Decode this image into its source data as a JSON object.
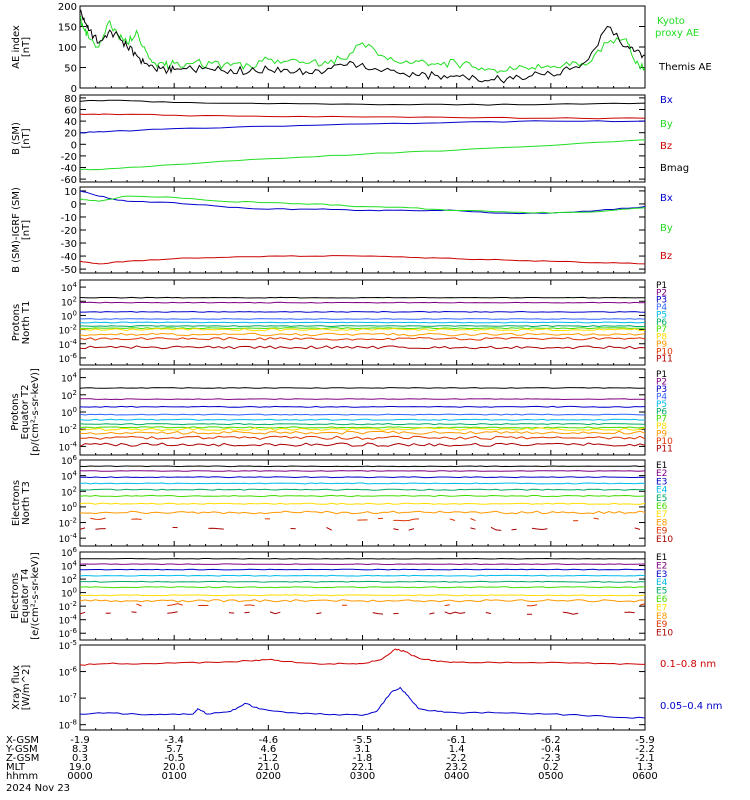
{
  "chart_data": [
    {
      "type": "line",
      "ylabel": "AE index [nT]",
      "yticks": [
        "0",
        "50",
        "100",
        "150",
        "200"
      ],
      "ylim": [
        0,
        200
      ],
      "legend": [
        {
          "label": "Kyoto proxy AE",
          "color": "#22dd22"
        },
        {
          "label": "Themis AE",
          "color": "#000000"
        }
      ],
      "series": [
        {
          "name": "Kyoto proxy AE",
          "color": "#22dd22",
          "x": [
            0,
            0.05,
            0.1,
            0.2,
            0.3,
            0.4,
            0.5,
            0.6,
            0.7,
            0.8,
            0.9,
            1.0,
            1.2,
            1.4,
            1.6,
            1.8,
            2.0,
            2.2,
            2.4,
            2.6,
            2.8,
            3.0,
            3.2,
            3.4,
            3.6,
            3.8,
            4.0,
            4.2,
            4.4,
            4.6,
            4.8,
            5.0,
            5.2,
            5.4,
            5.6,
            5.8,
            5.9,
            6.0
          ],
          "y": [
            170,
            140,
            120,
            100,
            160,
            130,
            110,
            140,
            90,
            60,
            55,
            60,
            60,
            60,
            55,
            55,
            70,
            65,
            60,
            65,
            70,
            110,
            80,
            60,
            65,
            60,
            60,
            50,
            45,
            45,
            50,
            50,
            55,
            60,
            110,
            120,
            60,
            50
          ]
        },
        {
          "name": "Themis AE",
          "color": "#000000",
          "x": [
            0,
            0.05,
            0.1,
            0.2,
            0.3,
            0.4,
            0.5,
            0.6,
            0.7,
            0.8,
            0.9,
            1.0,
            1.2,
            1.4,
            1.6,
            1.8,
            2.0,
            2.2,
            2.4,
            2.6,
            2.8,
            3.0,
            3.2,
            3.4,
            3.6,
            3.8,
            4.0,
            4.2,
            4.4,
            4.6,
            4.8,
            5.0,
            5.2,
            5.4,
            5.6,
            5.8,
            5.9,
            6.0
          ],
          "y": [
            190,
            160,
            140,
            110,
            135,
            130,
            100,
            80,
            60,
            45,
            45,
            45,
            45,
            45,
            45,
            40,
            45,
            45,
            40,
            40,
            55,
            60,
            40,
            35,
            30,
            30,
            30,
            25,
            20,
            22,
            30,
            35,
            45,
            70,
            150,
            100,
            90,
            80
          ]
        }
      ]
    },
    {
      "type": "line",
      "ylabel": "B (SM) [nT]",
      "yticks": [
        "-60",
        "-40",
        "-20",
        "0",
        "20",
        "40",
        "60",
        "80"
      ],
      "ylim": [
        -65,
        85
      ],
      "legend": [
        {
          "label": "Bx",
          "color": "#0000cc"
        },
        {
          "label": "By",
          "color": "#22dd22"
        },
        {
          "label": "Bz",
          "color": "#cc0000"
        },
        {
          "label": "Bmag",
          "color": "#000000"
        }
      ],
      "series": [
        {
          "name": "Bx",
          "color": "#0000cc",
          "x": [
            0,
            0.3,
            1.0,
            2.0,
            3.0,
            4.0,
            5.0,
            6.0
          ],
          "y": [
            20,
            22,
            27,
            31,
            35,
            38,
            40,
            40
          ]
        },
        {
          "name": "By",
          "color": "#22dd22",
          "x": [
            0,
            0.3,
            1.0,
            2.0,
            3.0,
            4.0,
            5.0,
            6.0
          ],
          "y": [
            -44,
            -42,
            -35,
            -25,
            -17,
            -10,
            -2,
            8
          ]
        },
        {
          "name": "Bz",
          "color": "#cc0000",
          "x": [
            0,
            0.3,
            1.0,
            2.0,
            3.0,
            4.0,
            5.0,
            6.0
          ],
          "y": [
            52,
            52,
            50,
            48,
            47,
            46,
            45,
            45
          ]
        },
        {
          "name": "Bmag",
          "color": "#000000",
          "x": [
            0,
            0.3,
            1.0,
            2.0,
            3.0,
            4.0,
            5.0,
            6.0
          ],
          "y": [
            74,
            76,
            72,
            70,
            69,
            68,
            69,
            71
          ]
        }
      ]
    },
    {
      "type": "line",
      "ylabel": "B (SM)-IGRF (SM) [nT]",
      "yticks": [
        "-50",
        "-40",
        "-30",
        "-20",
        "-10",
        "0",
        "10"
      ],
      "ylim": [
        -53,
        13
      ],
      "legend": [
        {
          "label": "Bx",
          "color": "#0000cc"
        },
        {
          "label": "By",
          "color": "#22dd22"
        },
        {
          "label": "Bz",
          "color": "#cc0000"
        }
      ],
      "series": [
        {
          "name": "Bx",
          "color": "#0000cc",
          "x": [
            0,
            0.2,
            0.5,
            1.0,
            1.5,
            2.0,
            2.5,
            3.0,
            3.5,
            4.0,
            4.5,
            5.0,
            5.5,
            6.0
          ],
          "y": [
            10,
            6,
            2,
            1,
            -2,
            -4,
            -4,
            -5,
            -5,
            -5,
            -7,
            -7,
            -5,
            -2
          ]
        },
        {
          "name": "By",
          "color": "#22dd22",
          "x": [
            0,
            0.2,
            0.5,
            1.0,
            1.5,
            2.0,
            2.5,
            3.0,
            3.5,
            4.0,
            4.5,
            5.0,
            5.5,
            6.0
          ],
          "y": [
            4,
            2,
            6,
            5,
            2,
            1,
            0,
            -2,
            -3,
            -5,
            -6,
            -7,
            -6,
            -3
          ]
        },
        {
          "name": "Bz",
          "color": "#cc0000",
          "x": [
            0,
            0.2,
            0.5,
            1.0,
            1.5,
            2.0,
            2.5,
            3.0,
            3.5,
            4.0,
            4.5,
            5.0,
            5.5,
            6.0
          ],
          "y": [
            -44,
            -46,
            -44,
            -42,
            -41,
            -40,
            -40,
            -40,
            -41,
            -42,
            -43,
            -44,
            -45,
            -46
          ]
        }
      ]
    },
    {
      "type": "line",
      "yscale": "log",
      "ylabel": "Protons North T1",
      "yticks": [
        "10^-6",
        "10^-4",
        "10^-2",
        "10^0",
        "10^2",
        "10^4"
      ],
      "ylim": [
        -7,
        5
      ],
      "legend": [
        {
          "label": "P1",
          "color": "#000000"
        },
        {
          "label": "P2",
          "color": "#800080"
        },
        {
          "label": "P3",
          "color": "#0000cc"
        },
        {
          "label": "P4",
          "color": "#3366ff"
        },
        {
          "label": "P5",
          "color": "#00bbee"
        },
        {
          "label": "P6",
          "color": "#00aa66"
        },
        {
          "label": "P7",
          "color": "#44dd00"
        },
        {
          "label": "P8",
          "color": "#ffdd00"
        },
        {
          "label": "P9",
          "color": "#ff9900"
        },
        {
          "label": "P10",
          "color": "#dd3300"
        },
        {
          "label": "P11",
          "color": "#aa0000"
        }
      ],
      "series_log10_levels": [
        2.5,
        1.8,
        0.5,
        -0.5,
        -1.0,
        -1.5,
        -1.8,
        -2.0,
        -2.7,
        -3.3,
        -4.5
      ]
    },
    {
      "type": "line",
      "yscale": "log",
      "ylabel": "Protons Equator T2 [p/(cm²-s-sr-keV)]",
      "yticks": [
        "10^-4",
        "10^-2",
        "10^0",
        "10^2",
        "10^4"
      ],
      "ylim": [
        -5,
        5
      ],
      "legend": [
        {
          "label": "P1",
          "color": "#000000"
        },
        {
          "label": "P2",
          "color": "#800080"
        },
        {
          "label": "P3",
          "color": "#0000cc"
        },
        {
          "label": "P4",
          "color": "#3366ff"
        },
        {
          "label": "P5",
          "color": "#00bbee"
        },
        {
          "label": "P6",
          "color": "#00aa66"
        },
        {
          "label": "P7",
          "color": "#44dd00"
        },
        {
          "label": "P8",
          "color": "#ffdd00"
        },
        {
          "label": "P9",
          "color": "#ff9900"
        },
        {
          "label": "P10",
          "color": "#dd3300"
        },
        {
          "label": "P11",
          "color": "#aa0000"
        }
      ],
      "series_log10_levels": [
        2.8,
        1.5,
        0.6,
        -0.3,
        -0.9,
        -1.4,
        -1.8,
        -2.0,
        -2.4,
        -3.0,
        -3.8
      ]
    },
    {
      "type": "line",
      "yscale": "log",
      "ylabel": "Electrons North T3",
      "yticks": [
        "10^-4",
        "10^-2",
        "10^0",
        "10^2",
        "10^4",
        "10^6"
      ],
      "ylim": [
        -5,
        6
      ],
      "legend": [
        {
          "label": "E1",
          "color": "#000000"
        },
        {
          "label": "E2",
          "color": "#800080"
        },
        {
          "label": "E3",
          "color": "#0000cc"
        },
        {
          "label": "E4",
          "color": "#00bbee"
        },
        {
          "label": "E5",
          "color": "#00aa66"
        },
        {
          "label": "E6",
          "color": "#44dd00"
        },
        {
          "label": "E7",
          "color": "#ffdd00"
        },
        {
          "label": "E8",
          "color": "#ff9900"
        },
        {
          "label": "E9",
          "color": "#dd3300"
        },
        {
          "label": "E10",
          "color": "#aa0000"
        }
      ],
      "series_log10_levels": [
        5.2,
        4.6,
        3.8,
        3.0,
        2.2,
        1.4,
        0.4,
        -0.7,
        -1.6,
        -2.8
      ]
    },
    {
      "type": "line",
      "yscale": "log",
      "ylabel": "Electrons Equator T4 [e/(cm²-s-sr-keV)]",
      "yticks": [
        "10^-6",
        "10^-4",
        "10^-2",
        "10^0",
        "10^2",
        "10^4",
        "10^6"
      ],
      "ylim": [
        -7,
        6
      ],
      "legend": [
        {
          "label": "E1",
          "color": "#000000"
        },
        {
          "label": "E2",
          "color": "#800080"
        },
        {
          "label": "E3",
          "color": "#0000cc"
        },
        {
          "label": "E4",
          "color": "#00bbee"
        },
        {
          "label": "E5",
          "color": "#00aa66"
        },
        {
          "label": "E6",
          "color": "#44dd00"
        },
        {
          "label": "E7",
          "color": "#ffdd00"
        },
        {
          "label": "E8",
          "color": "#ff9900"
        },
        {
          "label": "E9",
          "color": "#dd3300"
        },
        {
          "label": "E10",
          "color": "#aa0000"
        }
      ],
      "series_log10_levels": [
        5.0,
        4.2,
        3.4,
        2.5,
        1.6,
        0.8,
        -0.4,
        -1.2,
        -1.8,
        -3.0
      ]
    },
    {
      "type": "line",
      "yscale": "log",
      "ylabel": "Xray flux [W/m^2]",
      "yticks": [
        "10^-8",
        "10^-7",
        "10^-6",
        "10^-5"
      ],
      "ylim": [
        -8.2,
        -5
      ],
      "legend": [
        {
          "label": "0.1–0.8 nm",
          "color": "#cc0000"
        },
        {
          "label": "0.05–0.4 nm",
          "color": "#0000cc"
        }
      ],
      "series": [
        {
          "name": "0.1–0.8 nm",
          "color": "#cc0000",
          "x": [
            0,
            0.3,
            0.6,
            1.0,
            1.4,
            1.8,
            2.0,
            2.2,
            2.5,
            2.8,
            3.0,
            3.2,
            3.35,
            3.45,
            3.6,
            3.8,
            4.0,
            4.4,
            4.8,
            5.2,
            5.6,
            6.0
          ],
          "y": [
            -5.75,
            -5.7,
            -5.72,
            -5.68,
            -5.65,
            -5.6,
            -5.55,
            -5.62,
            -5.7,
            -5.7,
            -5.7,
            -5.55,
            -5.15,
            -5.25,
            -5.5,
            -5.62,
            -5.65,
            -5.66,
            -5.66,
            -5.68,
            -5.7,
            -5.73
          ]
        },
        {
          "name": "0.05–0.4 nm",
          "color": "#0000cc",
          "x": [
            0,
            0.3,
            0.6,
            0.9,
            1.2,
            1.25,
            1.35,
            1.6,
            1.75,
            1.9,
            2.2,
            2.5,
            2.8,
            3.0,
            3.15,
            3.3,
            3.4,
            3.5,
            3.6,
            3.8,
            4.0,
            4.4,
            4.8,
            5.2,
            5.6,
            6.0
          ],
          "y": [
            -7.6,
            -7.55,
            -7.6,
            -7.62,
            -7.6,
            -7.4,
            -7.6,
            -7.5,
            -7.2,
            -7.4,
            -7.55,
            -7.6,
            -7.62,
            -7.65,
            -7.5,
            -6.8,
            -6.6,
            -7.0,
            -7.4,
            -7.5,
            -7.55,
            -7.55,
            -7.6,
            -7.62,
            -7.7,
            -7.75
          ]
        }
      ]
    }
  ],
  "xaxis": {
    "ephemeris_labels": [
      "X-GSM",
      "Y-GSM",
      "Z-GSM",
      "MLT",
      "hhmm"
    ],
    "date": "2024 Nov 23",
    "columns": [
      {
        "values": [
          "-1.9",
          "8.3",
          "0.3",
          "19.0",
          "0000"
        ]
      },
      {
        "values": [
          "-3.4",
          "5.7",
          "-0.5",
          "20.0",
          "0100"
        ]
      },
      {
        "values": [
          "-4.6",
          "4.6",
          "-1.2",
          "21.0",
          "0200"
        ]
      },
      {
        "values": [
          "-5.5",
          "3.1",
          "-1.8",
          "22.1",
          "0300"
        ]
      },
      {
        "values": [
          "-6.1",
          "1.4",
          "-2.2",
          "23.2",
          "0400"
        ]
      },
      {
        "values": [
          "-6.2",
          "-0.4",
          "-2.3",
          "0.2",
          "0500"
        ]
      },
      {
        "values": [
          "-5.9",
          "-2.2",
          "-2.1",
          "1.3",
          "0600"
        ]
      }
    ]
  }
}
